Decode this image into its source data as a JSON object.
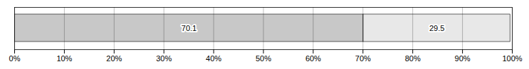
{
  "chart_data": {
    "type": "bar",
    "orientation": "horizontal",
    "stacked": true,
    "categories": [
      null
    ],
    "series": [
      {
        "color": "#c8c8c8",
        "values": [
          70.1
        ]
      },
      {
        "color": "#e8e8e8",
        "values": [
          29.5
        ]
      }
    ],
    "data_labels": true,
    "xlim": [
      0,
      100
    ],
    "xticks": [
      {
        "value": 0,
        "label": "0%"
      },
      {
        "value": 10,
        "label": "10%"
      },
      {
        "value": 20,
        "label": "20%"
      },
      {
        "value": 30,
        "label": "30%"
      },
      {
        "value": 40,
        "label": "40%"
      },
      {
        "value": 50,
        "label": "50%"
      },
      {
        "value": 60,
        "label": "60%"
      },
      {
        "value": 70,
        "label": "70%"
      },
      {
        "value": 80,
        "label": "80%"
      },
      {
        "value": 90,
        "label": "90%"
      },
      {
        "value": 100,
        "label": "100%"
      }
    ],
    "grid": true,
    "tick_labels": "x"
  }
}
